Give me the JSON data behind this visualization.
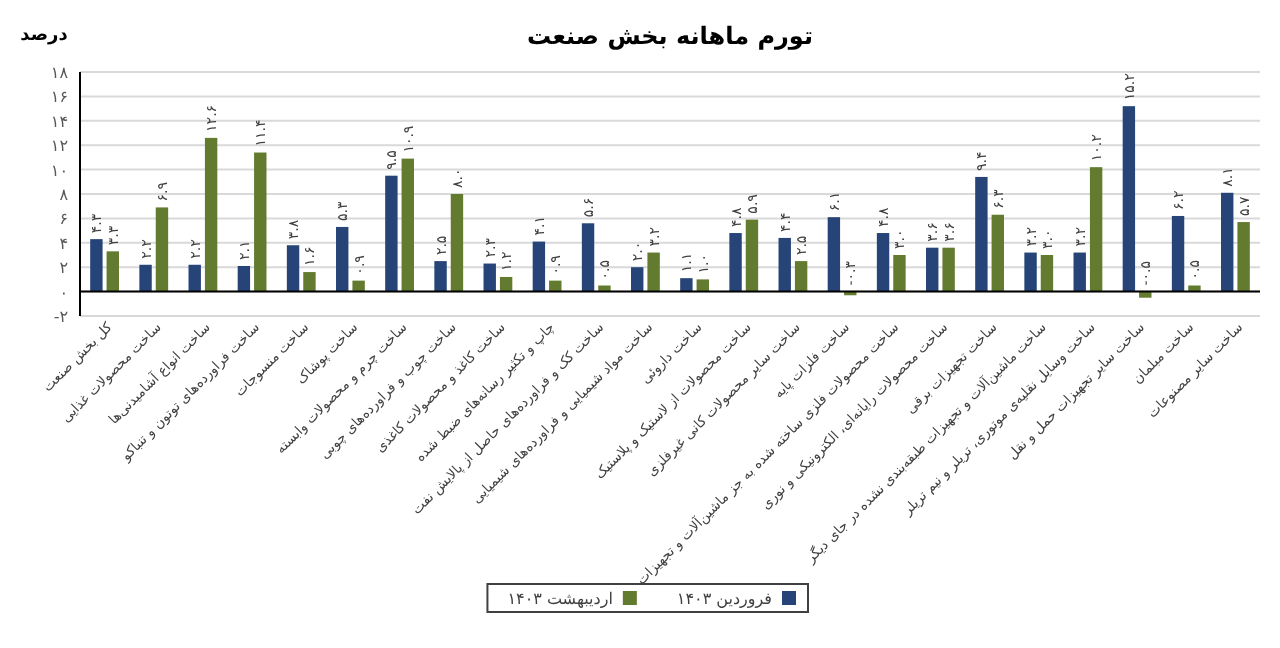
{
  "chart_data": {
    "type": "bar",
    "title": "تورم ماهانه بخش صنعت",
    "ylabel": "درصد",
    "categories": [
      "کل بخش صنعت",
      "ساخت محصولات غذایی",
      "ساخت انواع آشامیدنی‌ها",
      "ساخت فراورده‌های توتون و تنباکو",
      "ساخت منسوجات",
      "ساخت پوشاک",
      "ساخت چرم و محصولات وابسته",
      "ساخت چوب و فراورده‌های چوبی",
      "ساخت کاغذ و محصولات کاغذی",
      "چاپ و تکثیر رسانه‌های ضبط شده",
      "ساخت کک و فراورده‌های حاصل از پالایش نفت",
      "ساخت مواد شیمیایی و فراورده‌های شیمیایی",
      "ساخت داروئی",
      "ساخت محصولات از لاستیک و پلاستیک",
      "ساخت سایر محصولات کانی غیرفلزی",
      "ساخت فلزات پایه",
      "ساخت محصولات فلزی ساخته شده به جز ماشین‌آلات و تجهیزات",
      "ساخت محصولات رایانه‌ای، الکترونیکی و نوری",
      "ساخت تجهیزات برقی",
      "ساخت ماشین‌آلات و تجهیزات طبقه‌بندی نشده در جای دیگر",
      "ساخت وسایل نقلیه‌ی موتوری، تریلر و نیم تریلر",
      "ساخت سایر تجهیزات حمل و نقل",
      "ساخت مبلمان",
      "ساخت سایر مصنوعات"
    ],
    "series": [
      {
        "name": "فروردین ۱۴۰۳",
        "color": "#264478",
        "values": [
          4.3,
          2.2,
          2.2,
          2.1,
          3.8,
          5.3,
          9.5,
          2.5,
          2.3,
          4.1,
          5.6,
          2.0,
          1.1,
          4.8,
          4.4,
          6.1,
          4.8,
          3.6,
          9.4,
          3.2,
          3.2,
          15.2,
          6.2,
          8.1
        ],
        "value_labels": [
          "۴.۳",
          "۲.۲",
          "۲.۲",
          "۲.۱",
          "۳.۸",
          "۵.۳",
          "۹.۵",
          "۲.۵",
          "۲.۳",
          "۴.۱",
          "۵.۶",
          "۲.۰",
          "۱.۱",
          "۴.۸",
          "۴.۴",
          "۶.۱",
          "۴.۸",
          "۳.۶",
          "۹.۴",
          "۳.۲",
          "۳.۲",
          "۱۵.۲",
          "۶.۲",
          "۸.۱"
        ]
      },
      {
        "name": "اردیبهشت ۱۴۰۳",
        "color": "#637b2f",
        "values": [
          3.3,
          6.9,
          12.6,
          11.4,
          1.6,
          0.9,
          10.9,
          8.0,
          1.2,
          0.9,
          0.5,
          3.2,
          1.0,
          5.9,
          2.5,
          -0.3,
          3.0,
          3.6,
          6.3,
          3.0,
          10.2,
          -0.5,
          0.5,
          5.7
        ],
        "value_labels": [
          "۳.۳",
          "۶.۹",
          "۱۲.۶",
          "۱۱.۴",
          "۱.۶",
          "۰.۹",
          "۱۰.۹",
          "۸.۰",
          "۱.۲",
          "۰.۹",
          "۰.۵",
          "۳.۲",
          "۱.۰",
          "۵.۹",
          "۲.۵",
          "-۰.۳",
          "۳.۰",
          "۳.۶",
          "۶.۳",
          "۳.۰",
          "۱۰.۲",
          "-۰.۵",
          "۰.۵",
          "۵.۷"
        ]
      }
    ],
    "ylim": [
      -2,
      18
    ],
    "yticks": [
      {
        "value": -2,
        "label": "-۲"
      },
      {
        "value": 0,
        "label": "۰"
      },
      {
        "value": 2,
        "label": "۲"
      },
      {
        "value": 4,
        "label": "۴"
      },
      {
        "value": 6,
        "label": "۶"
      },
      {
        "value": 8,
        "label": "۸"
      },
      {
        "value": 10,
        "label": "۱۰"
      },
      {
        "value": 12,
        "label": "۱۲"
      },
      {
        "value": 14,
        "label": "۱۴"
      },
      {
        "value": 16,
        "label": "۱۶"
      },
      {
        "value": 18,
        "label": "۱۸"
      }
    ],
    "grid": "y",
    "legend": "bottom"
  }
}
